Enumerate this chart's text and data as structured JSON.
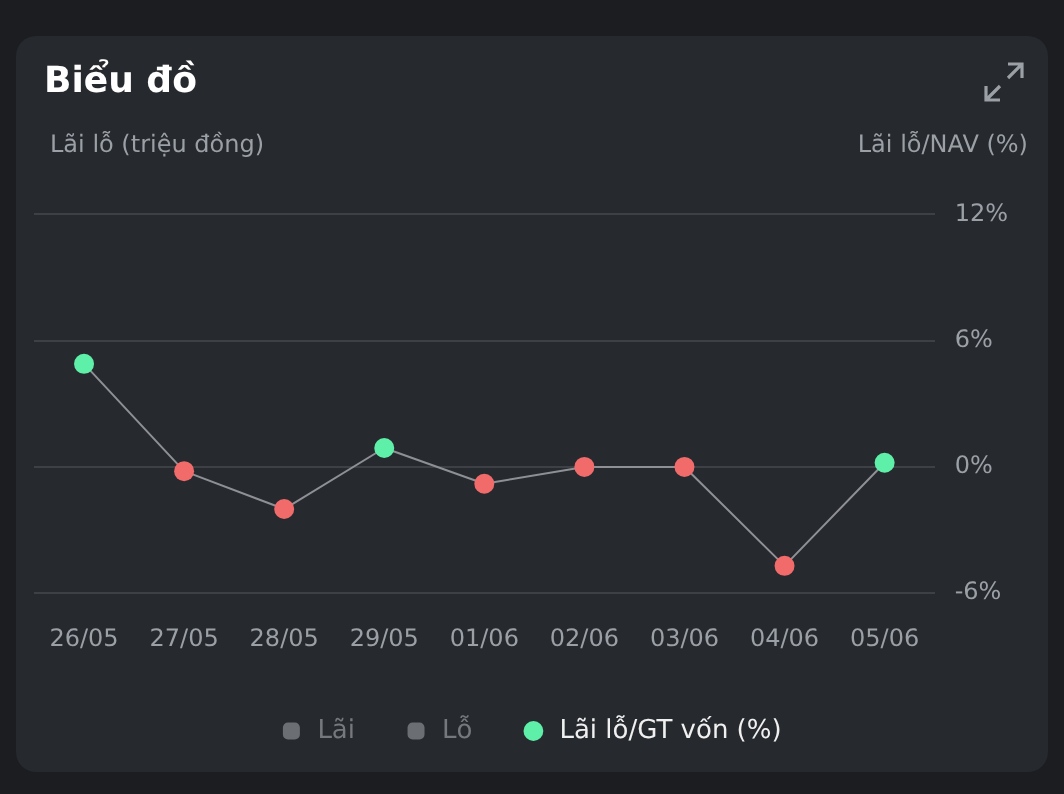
{
  "chart_data": {
    "type": "line",
    "title": "Biểu đồ",
    "ylabel": "Lãi lỗ (triệu đồng)",
    "y2label": "Lãi lỗ/NAV (%)",
    "categories": [
      "26/05",
      "27/05",
      "28/05",
      "29/05",
      "01/06",
      "02/06",
      "03/06",
      "04/06",
      "05/06"
    ],
    "series": [
      {
        "name": "Lãi",
        "type": "bar",
        "color": "#6b6e73",
        "values": [
          null,
          null,
          null,
          null,
          null,
          null,
          null,
          null,
          null
        ]
      },
      {
        "name": "Lỗ",
        "type": "bar",
        "color": "#6b6e73",
        "values": [
          null,
          null,
          null,
          null,
          null,
          null,
          null,
          null,
          null
        ]
      },
      {
        "name": "Lãi lỗ/GT vốn (%)",
        "axis": "y2",
        "color": "#8e9095",
        "colors": [
          "#5ef0a8",
          "#f26b6b",
          "#f26b6b",
          "#5ef0a8",
          "#f26b6b",
          "#f26b6b",
          "#f26b6b",
          "#f26b6b",
          "#5ef0a8"
        ],
        "values": [
          4.9,
          -0.2,
          -2.0,
          0.9,
          -0.8,
          0.0,
          0.0,
          -4.7,
          0.2
        ]
      }
    ],
    "y2lim": [
      -6,
      12
    ],
    "y2ticks": [
      {
        "value": -6,
        "label": "-6%"
      },
      {
        "value": 0,
        "label": "0%"
      },
      {
        "value": 6,
        "label": "6%"
      },
      {
        "value": 12,
        "label": "12%"
      }
    ],
    "grid": "y",
    "legend": "bottom",
    "marker": "circle"
  }
}
